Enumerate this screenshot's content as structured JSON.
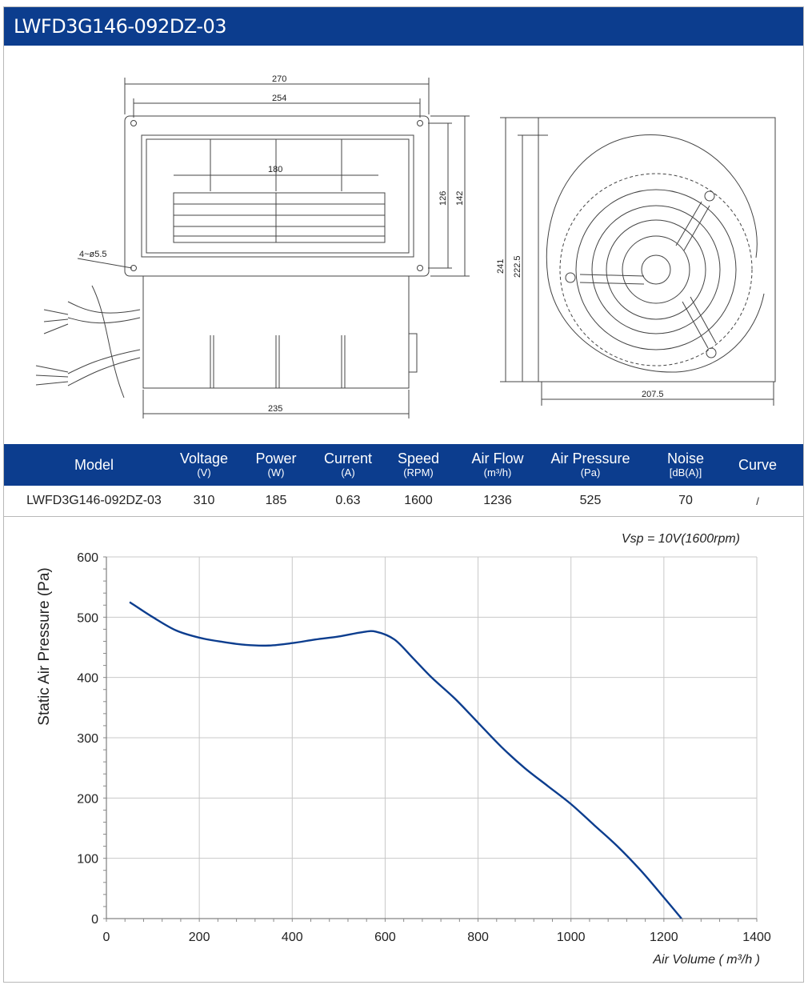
{
  "header": {
    "title": "LWFD3G146-092DZ-03"
  },
  "drawing": {
    "dims": {
      "d270": "270",
      "d254": "254",
      "d180": "180",
      "d126": "126",
      "d142": "142",
      "d235": "235",
      "holes": "4~ø5.5",
      "d241": "241",
      "d2225": "222.5",
      "d2075": "207.5"
    }
  },
  "spec": {
    "columns": [
      {
        "label": "Model",
        "unit": ""
      },
      {
        "label": "Voltage",
        "unit": "(V)"
      },
      {
        "label": "Power",
        "unit": "(W)"
      },
      {
        "label": "Current",
        "unit": "(A)"
      },
      {
        "label": "Speed",
        "unit": "(RPM)"
      },
      {
        "label": "Air Flow",
        "unit": "(m³/h)"
      },
      {
        "label": "Air Pressure",
        "unit": "(Pa)"
      },
      {
        "label": "Noise",
        "unit": "[dB(A)]"
      },
      {
        "label": "Curve",
        "unit": ""
      }
    ],
    "row": [
      "LWFD3G146-092DZ-03",
      "310",
      "185",
      "0.63",
      "1600",
      "1236",
      "525",
      "70",
      "/"
    ]
  },
  "chart_data": {
    "type": "line",
    "title": "",
    "annotation": "Vsp = 10V(1600rpm)",
    "xlabel": "Air Volume ( m³/h )",
    "ylabel": "Static Air Pressure  (Pa)",
    "xlim": [
      0,
      1400
    ],
    "ylim": [
      0,
      600
    ],
    "xticks": [
      0,
      200,
      400,
      600,
      800,
      1000,
      1200,
      1400
    ],
    "yticks": [
      0,
      100,
      200,
      300,
      400,
      500,
      600
    ],
    "grid": true,
    "line_color": "#0c3d8e",
    "series": [
      {
        "x": [
          50,
          100,
          150,
          200,
          250,
          300,
          350,
          400,
          450,
          500,
          550,
          580,
          620,
          660,
          700,
          750,
          800,
          850,
          900,
          950,
          1000,
          1050,
          1100,
          1150,
          1200,
          1238
        ],
        "y": [
          525,
          500,
          478,
          466,
          459,
          454,
          453,
          457,
          463,
          468,
          475,
          476,
          463,
          432,
          400,
          365,
          325,
          285,
          250,
          220,
          190,
          155,
          120,
          80,
          35,
          0
        ]
      }
    ]
  }
}
